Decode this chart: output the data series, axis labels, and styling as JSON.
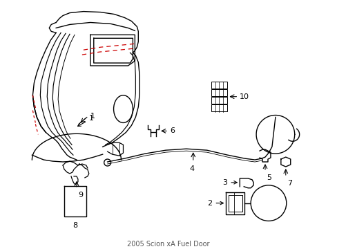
{
  "background_color": "#ffffff",
  "line_color": "#000000",
  "red_color": "#cc0000",
  "fig_width": 4.89,
  "fig_height": 3.6,
  "dpi": 100
}
